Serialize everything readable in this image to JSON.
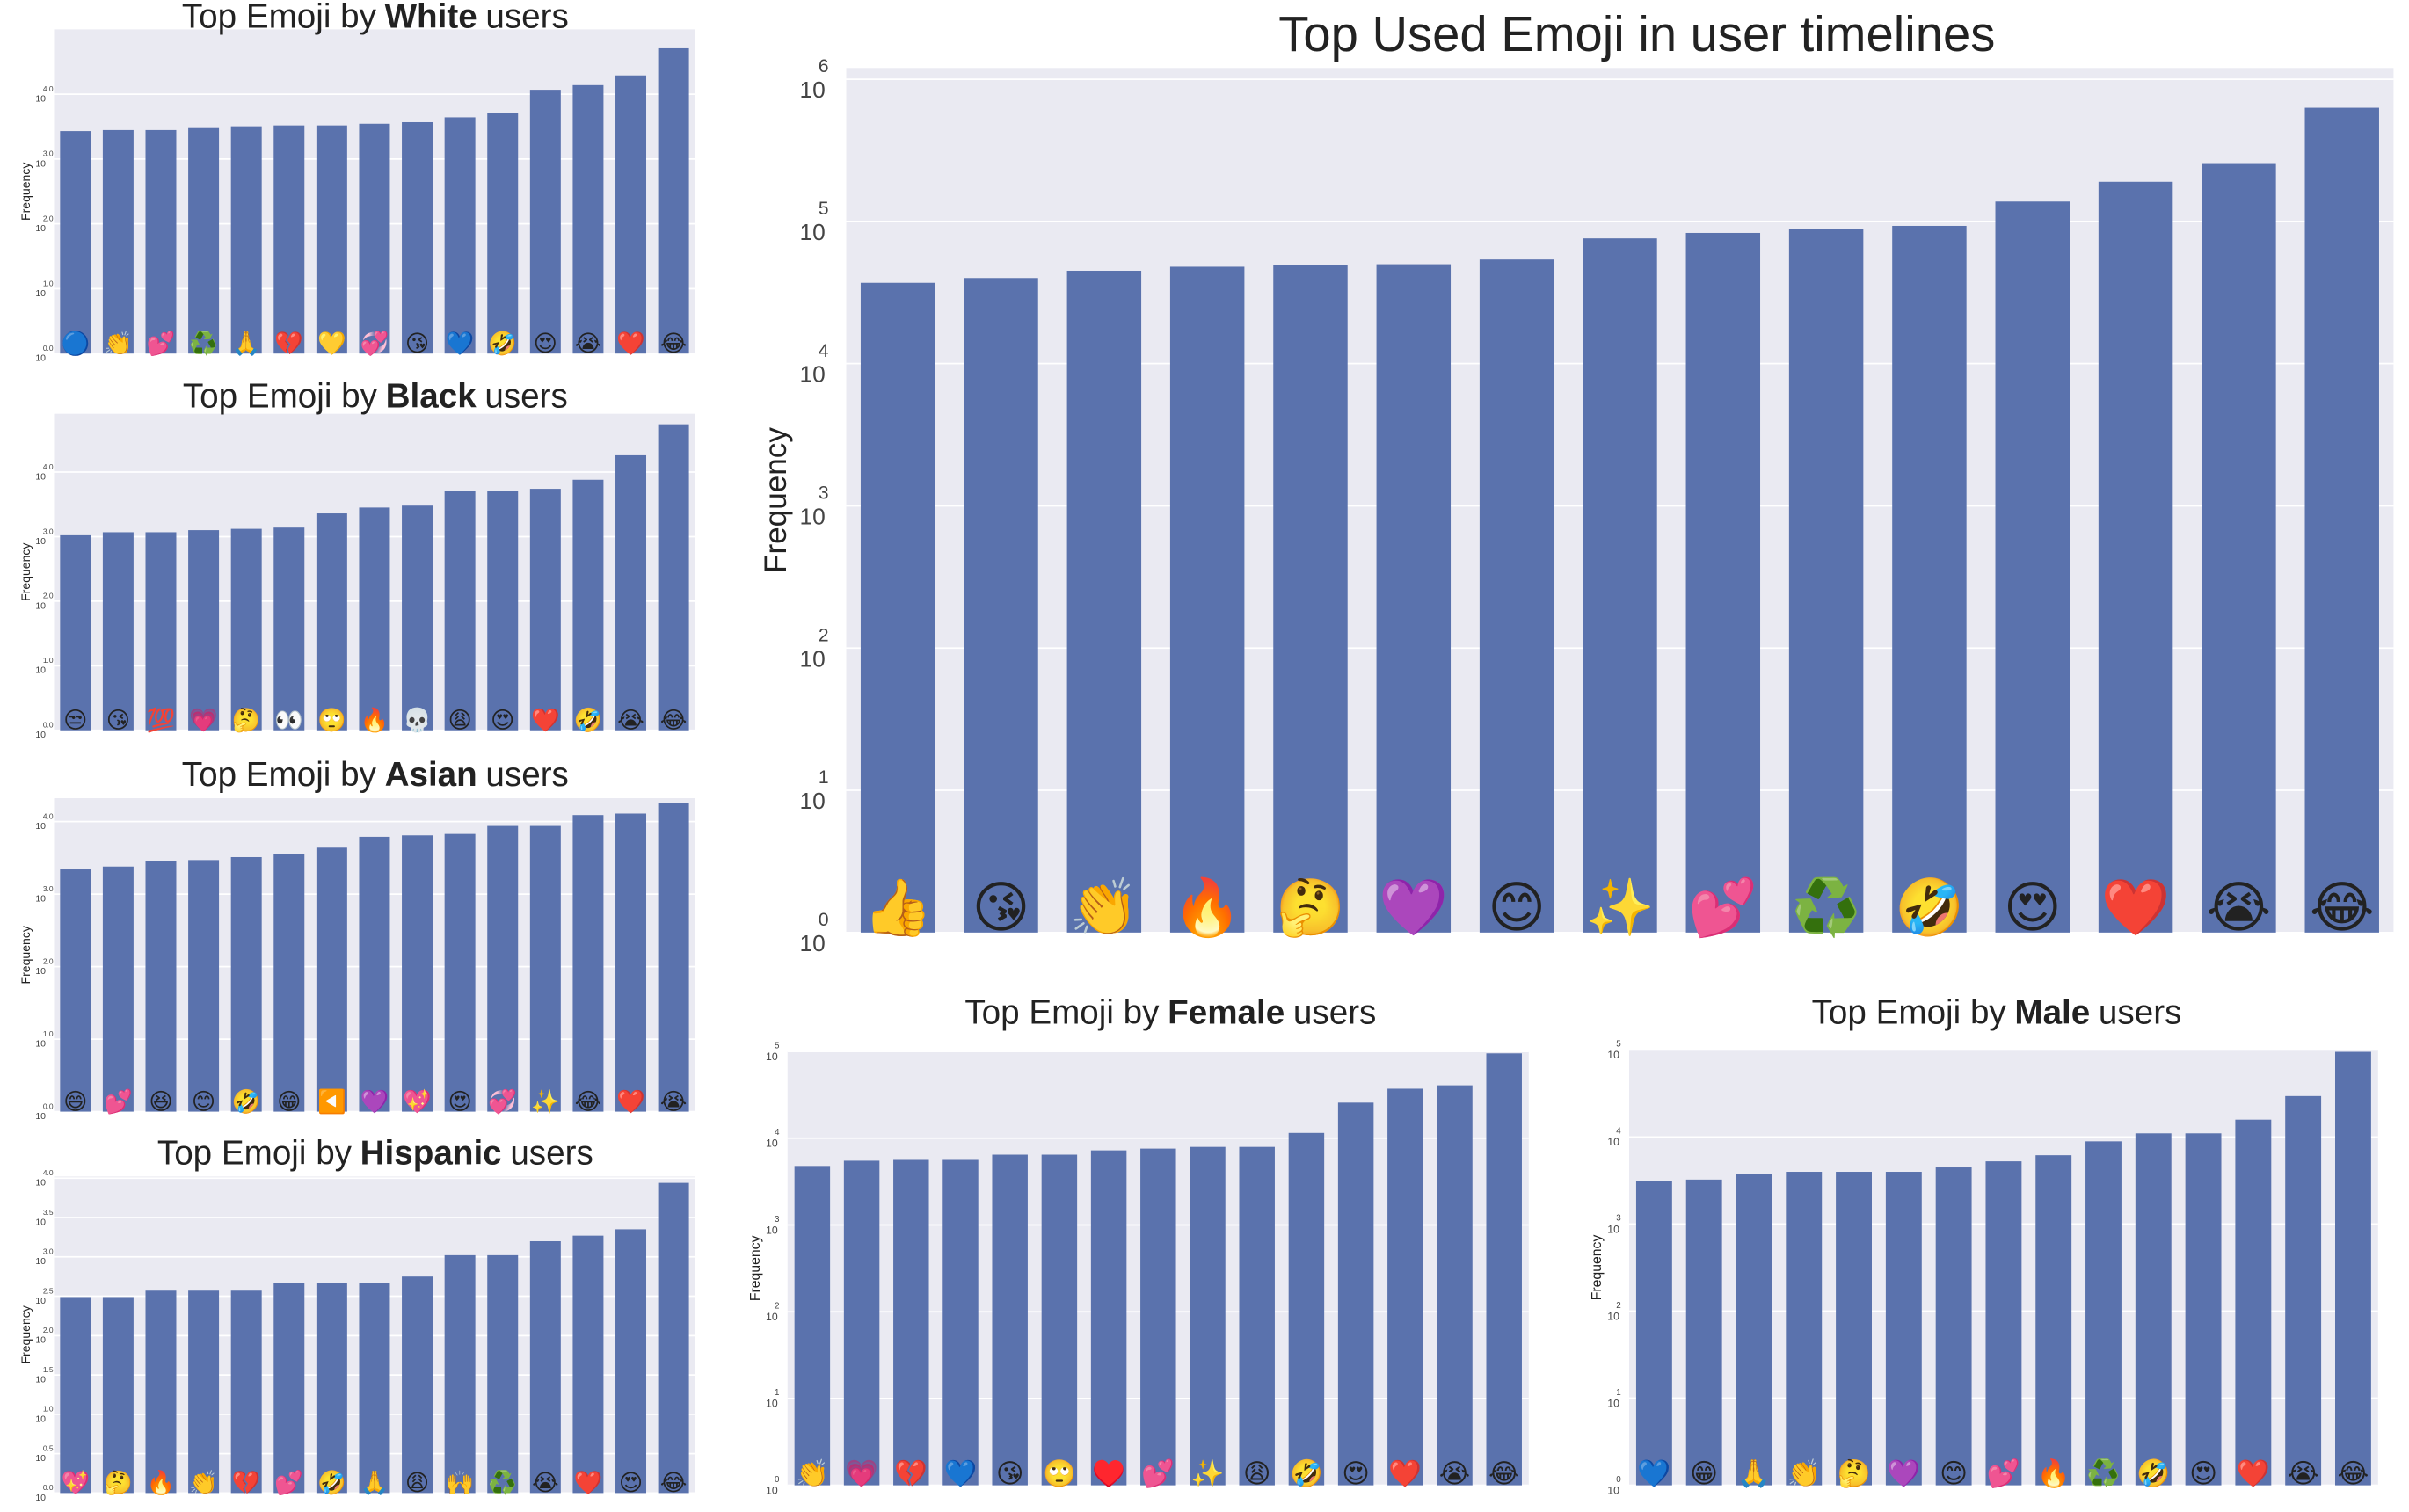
{
  "chart_data": [
    {
      "type": "bar",
      "title": "Top Emoji by",
      "title_bold": "White",
      "title_end": "users",
      "ylabel": "Frequency",
      "log": true,
      "grid": true,
      "color": "#5a72ad",
      "categories": [
        "🔵",
        "👏",
        "💕",
        "♻️",
        "🙏",
        "💔",
        "💛",
        "💞",
        "😘",
        "💙",
        "🤣",
        "😍",
        "😭",
        "❤️",
        "😂"
      ],
      "values": [
        2700,
        2800,
        2800,
        3000,
        3200,
        3300,
        3300,
        3500,
        3700,
        4400,
        5100,
        11700,
        13800,
        19500,
        51000
      ],
      "ylim": [
        1,
        100000
      ],
      "yticks": [
        {
          "value": 1,
          "label": "10",
          "power": "0.0"
        },
        {
          "value": 10,
          "label": "10",
          "power": "1.0"
        },
        {
          "value": 100,
          "label": "10",
          "power": "2.0"
        },
        {
          "value": 1000,
          "label": "10",
          "power": "3.0"
        },
        {
          "value": 10000,
          "label": "10",
          "power": "4.0"
        }
      ]
    },
    {
      "type": "bar",
      "title": "Top Emoji by",
      "title_bold": "Black",
      "title_end": "users",
      "ylabel": "Frequency",
      "log": true,
      "grid": true,
      "color": "#5a72ad",
      "categories": [
        "😒",
        "😘",
        "💯",
        "💗",
        "🤔",
        "👀",
        "🙄",
        "🔥",
        "💀",
        "😩",
        "😍",
        "❤️",
        "🤣",
        "😭",
        "😂"
      ],
      "values": [
        1050,
        1170,
        1170,
        1260,
        1320,
        1380,
        2290,
        2820,
        3020,
        5100,
        5100,
        5500,
        7600,
        18200,
        55000
      ],
      "ylim": [
        1,
        80000
      ],
      "yticks": [
        {
          "value": 1,
          "label": "10",
          "power": "0.0"
        },
        {
          "value": 10,
          "label": "10",
          "power": "1.0"
        },
        {
          "value": 100,
          "label": "10",
          "power": "2.0"
        },
        {
          "value": 1000,
          "label": "10",
          "power": "3.0"
        },
        {
          "value": 10000,
          "label": "10",
          "power": "4.0"
        }
      ]
    },
    {
      "type": "bar",
      "title": "Top Emoji by",
      "title_bold": "Asian",
      "title_end": "users",
      "ylabel": "Frequency",
      "log": true,
      "grid": true,
      "color": "#5a72ad",
      "categories": [
        "😄",
        "💕",
        "😆",
        "😊",
        "🤣",
        "😁",
        "◀️",
        "💜",
        "💖",
        "😍",
        "💞",
        "✨",
        "😂",
        "❤️",
        "😭"
      ],
      "values": [
        2190,
        2400,
        2820,
        2950,
        3240,
        3550,
        4370,
        6170,
        6460,
        6760,
        8710,
        8710,
        12300,
        12900,
        18200
      ],
      "ylim": [
        1,
        21000
      ],
      "yticks": [
        {
          "value": 1,
          "label": "10",
          "power": "0.0"
        },
        {
          "value": 10,
          "label": "10",
          "power": "1.0"
        },
        {
          "value": 100,
          "label": "10",
          "power": "2.0"
        },
        {
          "value": 1000,
          "label": "10",
          "power": "3.0"
        },
        {
          "value": 10000,
          "label": "10",
          "power": "4.0"
        }
      ]
    },
    {
      "type": "bar",
      "title": "Top Emoji by",
      "title_bold": "Hispanic",
      "title_end": "users",
      "ylabel": "Frequency",
      "log": true,
      "grid": true,
      "color": "#5a72ad",
      "categories": [
        "💖",
        "🤔",
        "🔥",
        "👏",
        "💔",
        "💕",
        "🤣",
        "🙏",
        "😩",
        "🙌",
        "♻️",
        "😭",
        "❤️",
        "😍",
        "😂"
      ],
      "values": [
        309,
        309,
        372,
        372,
        372,
        468,
        468,
        468,
        562,
        1050,
        1050,
        1580,
        1860,
        2240,
        8710
      ],
      "ylim": [
        1,
        10500
      ],
      "yticks": [
        {
          "value": 1,
          "label": "10",
          "power": "0.0"
        },
        {
          "value": 3.162,
          "label": "10",
          "power": "0.5"
        },
        {
          "value": 10,
          "label": "10",
          "power": "1.0"
        },
        {
          "value": 31.62,
          "label": "10",
          "power": "1.5"
        },
        {
          "value": 100,
          "label": "10",
          "power": "2.0"
        },
        {
          "value": 316.2,
          "label": "10",
          "power": "2.5"
        },
        {
          "value": 1000,
          "label": "10",
          "power": "3.0"
        },
        {
          "value": 3162,
          "label": "10",
          "power": "3.5"
        },
        {
          "value": 10000,
          "label": "10",
          "power": "4.0"
        }
      ]
    },
    {
      "type": "bar",
      "title": "Top Used Emoji in user timelines",
      "ylabel": "Frequency",
      "log": true,
      "grid": true,
      "color": "#5a72ad",
      "categories": [
        "👍",
        "😘",
        "👏",
        "🔥",
        "🤔",
        "💜",
        "😊",
        "✨",
        "💕",
        "♻️",
        "🤣",
        "😍",
        "❤️",
        "😭",
        "😂"
      ],
      "values": [
        37000,
        40000,
        45000,
        48000,
        49000,
        50000,
        54000,
        76000,
        83000,
        89000,
        93000,
        138000,
        190000,
        257000,
        630000
      ],
      "ylim": [
        1,
        1200000
      ],
      "yticks": [
        {
          "value": 1,
          "label": "10",
          "power": "0"
        },
        {
          "value": 10,
          "label": "10",
          "power": "1"
        },
        {
          "value": 100,
          "label": "10",
          "power": "2"
        },
        {
          "value": 1000,
          "label": "10",
          "power": "3"
        },
        {
          "value": 10000,
          "label": "10",
          "power": "4"
        },
        {
          "value": 100000,
          "label": "10",
          "power": "5"
        },
        {
          "value": 1000000,
          "label": "10",
          "power": "6"
        }
      ]
    },
    {
      "type": "bar",
      "title": "Top Emoji by",
      "title_bold": "Female",
      "title_end": "users",
      "ylabel": "Frequency",
      "log": true,
      "grid": true,
      "color": "#5a72ad",
      "categories": [
        "👏",
        "💗",
        "💔",
        "💙",
        "😘",
        "🙄",
        "♥️",
        "💕",
        "✨",
        "😩",
        "🤣",
        "😍",
        "❤️",
        "😭",
        "😂"
      ],
      "values": [
        4790,
        5500,
        5620,
        5620,
        6460,
        6460,
        7240,
        7590,
        7940,
        7940,
        11500,
        25700,
        37200,
        40700,
        95000
      ],
      "ylim": [
        1,
        100000
      ],
      "yticks": [
        {
          "value": 1,
          "label": "10",
          "power": "0"
        },
        {
          "value": 10,
          "label": "10",
          "power": "1"
        },
        {
          "value": 100,
          "label": "10",
          "power": "2"
        },
        {
          "value": 1000,
          "label": "10",
          "power": "3"
        },
        {
          "value": 10000,
          "label": "10",
          "power": "4"
        },
        {
          "value": 100000,
          "label": "10",
          "power": "5"
        }
      ]
    },
    {
      "type": "bar",
      "title": "Top Emoji by",
      "title_bold": "Male",
      "title_end": "users",
      "ylabel": "Frequency",
      "log": true,
      "grid": true,
      "color": "#5a72ad",
      "categories": [
        "💙",
        "😁",
        "🙏",
        "👏",
        "🤔",
        "💜",
        "😊",
        "💕",
        "🔥",
        "♻️",
        "🤣",
        "😍",
        "❤️",
        "😭",
        "😂"
      ],
      "values": [
        3090,
        3240,
        3800,
        3980,
        3980,
        3980,
        4470,
        5250,
        6170,
        8910,
        11000,
        11000,
        15800,
        29500,
        95000
      ],
      "ylim": [
        1,
        100000
      ],
      "yticks": [
        {
          "value": 1,
          "label": "10",
          "power": "0"
        },
        {
          "value": 10,
          "label": "10",
          "power": "1"
        },
        {
          "value": 100,
          "label": "10",
          "power": "2"
        },
        {
          "value": 1000,
          "label": "10",
          "power": "3"
        },
        {
          "value": 10000,
          "label": "10",
          "power": "4"
        },
        {
          "value": 100000,
          "label": "10",
          "power": "5"
        }
      ]
    }
  ]
}
